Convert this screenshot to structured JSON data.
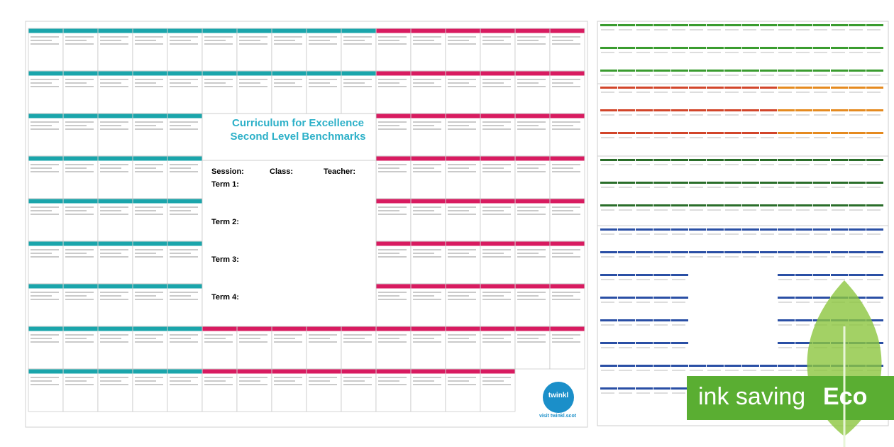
{
  "sheet": {
    "title": "Curriculum for Excellence Second Level Benchmarks",
    "session": "Session:",
    "class": "Class:",
    "teacher": "Teacher:",
    "terms": [
      "Term 1:",
      "Term 2:",
      "Term 3:",
      "Term 4:"
    ]
  },
  "branding": {
    "logo": "twinkl",
    "url": "visit twinkl.scot"
  },
  "badge": {
    "text": "ink saving",
    "eco": "Eco"
  }
}
